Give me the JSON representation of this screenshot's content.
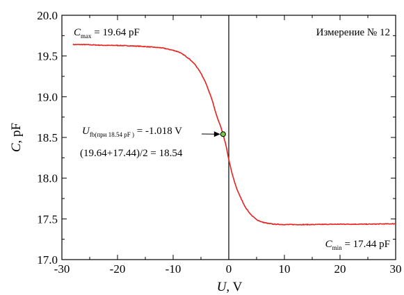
{
  "chart_data": {
    "type": "line",
    "xlabel_var": "U",
    "xlabel_unit": ", V",
    "ylabel_var": "C",
    "ylabel_unit": ", pF",
    "xlim": [
      -30,
      30
    ],
    "ylim": [
      17.0,
      20.0
    ],
    "x_ticks": [
      -30,
      -20,
      -10,
      0,
      10,
      20,
      30
    ],
    "x_tick_labels": [
      "-30",
      "-20",
      "-10",
      "0",
      "10",
      "20",
      "30"
    ],
    "y_ticks": [
      17.0,
      17.5,
      18.0,
      18.5,
      19.0,
      19.5,
      20.0
    ],
    "y_tick_labels": [
      "17.0",
      "17.5",
      "18.0",
      "18.5",
      "19.0",
      "19.5",
      "20.0"
    ],
    "grid": false,
    "series": [
      {
        "color": "#e8201c",
        "x": [
          -28,
          -26,
          -24,
          -22,
          -20,
          -18,
          -16,
          -14,
          -12,
          -10,
          -9,
          -8,
          -7,
          -6,
          -5,
          -4,
          -3,
          -2.5,
          -2,
          -1.5,
          -1.018,
          -0.5,
          0,
          0.5,
          1,
          1.5,
          2,
          3,
          4,
          5,
          6,
          7,
          8,
          10,
          12,
          15,
          20,
          25,
          30
        ],
        "y": [
          19.64,
          19.64,
          19.635,
          19.63,
          19.63,
          19.625,
          19.62,
          19.61,
          19.6,
          19.57,
          19.55,
          19.51,
          19.46,
          19.39,
          19.29,
          19.15,
          18.96,
          18.84,
          18.73,
          18.64,
          18.54,
          18.4,
          18.23,
          18.08,
          17.96,
          17.86,
          17.78,
          17.64,
          17.55,
          17.49,
          17.46,
          17.445,
          17.435,
          17.43,
          17.43,
          17.43,
          17.435,
          17.435,
          17.44
        ]
      }
    ],
    "marker": {
      "x": -1.018,
      "y": 18.54,
      "fill": "#7ac943"
    },
    "vertical_line_x": 0,
    "annotations": {
      "cmax_var": "C",
      "cmax_sub": "max",
      "cmax_val": " = 19.64 pF",
      "measurement": "Измерение № 12",
      "cmin_var": "C",
      "cmin_sub": "min",
      "cmin_val": " = 17.44 pF",
      "ufb_var": "U",
      "ufb_sub": "fb(при 18.54 pF )",
      "ufb_val": " = -1.018 V",
      "formula": "(19.64+17.44)/2 = 18.54"
    }
  }
}
